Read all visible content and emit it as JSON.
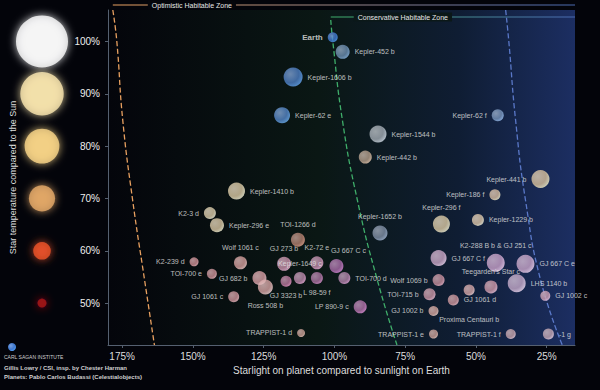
{
  "chart_data": {
    "type": "scatter",
    "xlabel": "Starlight on planet compared to sunlight on Earth",
    "ylabel": "Star temperature compared to the Sun",
    "xlim": [
      180,
      15
    ],
    "xticks": [
      {
        "value": 175,
        "label": "175%"
      },
      {
        "value": 150,
        "label": "150%"
      },
      {
        "value": 125,
        "label": "125%"
      },
      {
        "value": 100,
        "label": "100%"
      },
      {
        "value": 75,
        "label": "75%"
      },
      {
        "value": 50,
        "label": "50%"
      },
      {
        "value": 25,
        "label": "25%"
      }
    ],
    "ylim": [
      42,
      106
    ],
    "yticks": [
      {
        "value": 50,
        "label": "50%"
      },
      {
        "value": 60,
        "label": "60%"
      },
      {
        "value": 70,
        "label": "70%"
      },
      {
        "value": 80,
        "label": "80%"
      },
      {
        "value": 90,
        "label": "90%"
      },
      {
        "value": 100,
        "label": "100%"
      }
    ],
    "grid": false,
    "marker": "circle",
    "star_colors": [
      "#b0141a",
      "#f0542a",
      "#e9ad6a",
      "#fcd88a",
      "#fde9b0",
      "#ffffff"
    ],
    "labels": [
      "Earth",
      "Kepler-452 b",
      "Kepler-1606 b",
      "Kepler-62 e",
      "Kepler-1544 b",
      "Kepler-442 b",
      "Kepler-62 f",
      "Kepler-1410 b",
      "K2-3 d",
      "Kepler-296 e",
      "TOI-1266 d",
      "Kepler-1652 b",
      "Kepler-296 f",
      "Kepler-1229 b",
      "Kepler-186 f",
      "Kepler-441 b",
      "K2-239 d",
      "Wolf 1061 c",
      "TOI-700 e",
      "GJ 682 b",
      "GJ 273 b",
      "K2-72 e",
      "Kepler-1649 c",
      "GJ 3323 b",
      "L 98-59 f",
      "Ross 508 b",
      "GJ 667 C c",
      "TOI-700 d",
      "GJ 1061 c",
      "LP 890-9 c",
      "TRAPPIST-1 d",
      "Wolf 1069 b",
      "TOI-715 b",
      "GJ 667 C f",
      "GJ 1002 b",
      "GJ 1061 d",
      "Proxima Centauri b",
      "Teegarden's Star c",
      "TRAPPIST-1 e",
      "TRAPPIST-1 f",
      "-1 g",
      "K2-288 B b & GJ 251 c",
      "GJ 667 C e",
      "LHS 1140 b",
      "GJ 1002 c"
    ],
    "x": [
      100.6,
      97.1,
      114.6,
      118.5,
      84.6,
      89.1,
      42.3,
      134.6,
      144.0,
      141.5,
      112.9,
      83.9,
      62.2,
      49.3,
      43.3,
      27.2,
      149.6,
      133.2,
      143.3,
      126.5,
      117.8,
      106.2,
      112.2,
      117.1,
      106.2,
      124.4,
      99.3,
      96.5,
      135.6,
      90.9,
      111.8,
      63.2,
      66.4,
      63.2,
      65.0,
      58.0,
      52.4,
      44.7,
      65.0,
      37.7,
      24.4,
      43.0,
      32.5,
      35.6,
      25.5
    ],
    "values": [
      100.8,
      98.0,
      93.2,
      85.9,
      82.3,
      77.9,
      85.9,
      71.4,
      67.2,
      64.9,
      62.1,
      63.4,
      65.1,
      65.9,
      70.7,
      73.7,
      57.9,
      57.7,
      55.6,
      54.8,
      57.5,
      57.7,
      54.8,
      54.2,
      54.8,
      53.1,
      57.1,
      54.8,
      51.2,
      49.3,
      44.3,
      54.4,
      51.7,
      58.6,
      48.5,
      50.6,
      52.5,
      53.1,
      44.1,
      44.1,
      44.1,
      57.7,
      57.5,
      53.8,
      51.4
    ],
    "sizes": [
      1.0,
      1.4,
      1.9,
      1.6,
      1.7,
      1.3,
      1.2,
      1.7,
      1.2,
      1.4,
      1.4,
      1.5,
      1.7,
      1.2,
      1.1,
      1.8,
      0.9,
      1.3,
      1.0,
      1.4,
      1.4,
      1.3,
      1.2,
      1.1,
      1.2,
      1.5,
      1.4,
      1.2,
      1.1,
      1.3,
      0.8,
      1.2,
      1.2,
      1.6,
      1.0,
      1.1,
      1.1,
      1.3,
      0.9,
      1.0,
      1.1,
      1.8,
      1.8,
      1.8,
      1.0
    ],
    "colors": [
      "#3f78d0",
      "#6a8cae",
      "#4d7ec4",
      "#5486c8",
      "#a3abb3",
      "#b39c88",
      "#7692b8",
      "#dccaa4",
      "#dbcba8",
      "#d9c6a2",
      "#b07e6e",
      "#7f8ea4",
      "#dac8a2",
      "#dcc4a6",
      "#d6ba9e",
      "#d8bf9a",
      "#cc8c92",
      "#d49c9a",
      "#c98f96",
      "#d69ca2",
      "#c890aa",
      "#c08aaa",
      "#b886a8",
      "#b8769c",
      "#a8709e",
      "#d6a2a2",
      "#a86aa8",
      "#b080a8",
      "#cc9298",
      "#b070a8",
      "#c89c92",
      "#c48c9a",
      "#c692a2",
      "#c8a4c4",
      "#d2a29a",
      "#ca9298",
      "#d2a2a2",
      "#cc96a6",
      "#c89c92",
      "#c4a0a8",
      "#c2a4b0",
      "#c8a0c8",
      "#c8a4c8",
      "#c4a8c8",
      "#cc9cb0"
    ],
    "boundaries": [
      {
        "color": "#e8a060",
        "line_style": "dashed",
        "x": [
          178.3,
          176.9,
          174.8,
          171.3,
          167.1,
          163.6
        ],
        "y": [
          106,
          100.1,
          85.0,
          69.7,
          54.5,
          42
        ]
      },
      {
        "color": "#3fae6a",
        "line_style": "dashed",
        "x": [
          101.3,
          100.6,
          97.2,
          91.9,
          84.9,
          77.9
        ],
        "y": [
          104.1,
          100.1,
          85.0,
          69.7,
          54.5,
          42
        ]
      },
      {
        "color": "#5a78c8",
        "line_style": "dashed",
        "x": [
          39.5,
          38.4,
          36.0,
          32.5,
          27.2,
          19.5
        ],
        "y": [
          106,
          100.1,
          85.0,
          69.7,
          54.5,
          42
        ]
      }
    ],
    "zones": [
      {
        "label": "Optimistic Habitable Zone",
        "x": [
          178.3,
          15
        ],
        "colors": [
          "#e8a060",
          "#4a6ab0"
        ]
      },
      {
        "label": "Conservative Habitable Zone",
        "x": [
          101.3,
          15
        ],
        "colors": [
          "#3fae6a",
          "#4a6ab0"
        ]
      }
    ],
    "credits": [
      "CARL SAGAN INSTITUTE",
      "Gillis Lowry / CSI, insp. by Chester Harman",
      "Planets: Pablo Carlos Budassi (Celestialobjects)"
    ]
  }
}
